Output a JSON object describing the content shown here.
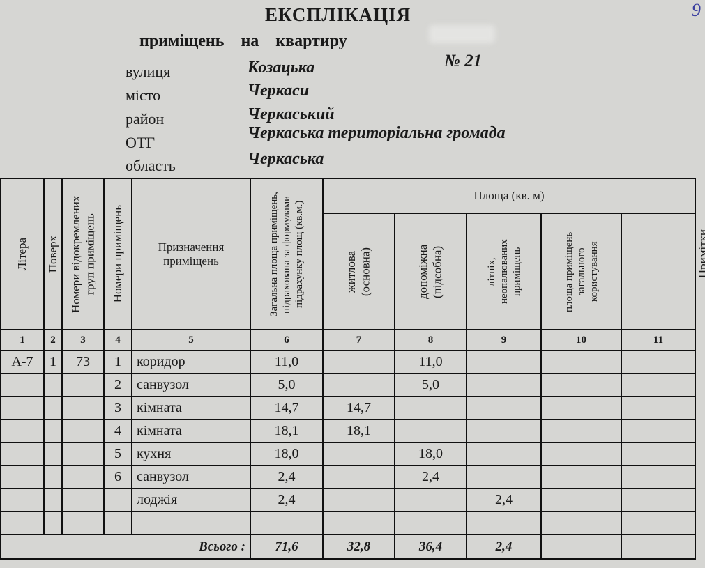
{
  "header": {
    "title": "ЕКСПЛІКАЦІЯ",
    "subtitle": "приміщень на квартиру",
    "apartment_number": "№ 21",
    "handwritten_mark": "9",
    "fields": [
      {
        "label": "вулиця",
        "value": "Козацька"
      },
      {
        "label": "місто",
        "value": "Черкаси"
      },
      {
        "label": "район",
        "value": "Черкаський"
      },
      {
        "label": "ОТГ",
        "value": "Черкаська територіальна громада"
      },
      {
        "label": "область",
        "value": "Черкаська"
      }
    ]
  },
  "table": {
    "columns": {
      "litera": "Літера",
      "poverkh": "Поверх",
      "groups": "Номери відокремлених груп приміщень",
      "rooms": "Номери приміщень",
      "purpose": "Призначення приміщень",
      "total_area": "Загальна площа приміщень, підрахована за формулами підрахунку площ (кв.м.)",
      "area_group": "Площа (кв. м)",
      "living": "житлова (основна)",
      "auxiliary": "допоміжна (підсобна)",
      "summer": "літніх, неопалюваних приміщень",
      "common": "площа приміщень загального користування",
      "notes": "Примітки"
    },
    "column_numbers": [
      "1",
      "2",
      "3",
      "4",
      "5",
      "6",
      "7",
      "8",
      "9",
      "10",
      "11"
    ],
    "rows": [
      {
        "litera": "А-7",
        "floor": "1",
        "group": "73",
        "room": "1",
        "name": "коридор",
        "total": "11,0",
        "living": "",
        "aux": "11,0",
        "summer": "",
        "common": "",
        "notes": ""
      },
      {
        "litera": "",
        "floor": "",
        "group": "",
        "room": "2",
        "name": "санвузол",
        "total": "5,0",
        "living": "",
        "aux": "5,0",
        "summer": "",
        "common": "",
        "notes": ""
      },
      {
        "litera": "",
        "floor": "",
        "group": "",
        "room": "3",
        "name": "кімната",
        "total": "14,7",
        "living": "14,7",
        "aux": "",
        "summer": "",
        "common": "",
        "notes": ""
      },
      {
        "litera": "",
        "floor": "",
        "group": "",
        "room": "4",
        "name": "кімната",
        "total": "18,1",
        "living": "18,1",
        "aux": "",
        "summer": "",
        "common": "",
        "notes": ""
      },
      {
        "litera": "",
        "floor": "",
        "group": "",
        "room": "5",
        "name": "кухня",
        "total": "18,0",
        "living": "",
        "aux": "18,0",
        "summer": "",
        "common": "",
        "notes": ""
      },
      {
        "litera": "",
        "floor": "",
        "group": "",
        "room": "6",
        "name": "санвузол",
        "total": "2,4",
        "living": "",
        "aux": "2,4",
        "summer": "",
        "common": "",
        "notes": ""
      },
      {
        "litera": "",
        "floor": "",
        "group": "",
        "room": "",
        "name": "лоджія",
        "total": "2,4",
        "living": "",
        "aux": "",
        "summer": "2,4",
        "common": "",
        "notes": ""
      },
      {
        "litera": "",
        "floor": "",
        "group": "",
        "room": "",
        "name": "",
        "total": "",
        "living": "",
        "aux": "",
        "summer": "",
        "common": "",
        "notes": ""
      }
    ],
    "totals": {
      "label": "Всього :",
      "total": "71,6",
      "living": "32,8",
      "aux": "36,4",
      "summer": "2,4"
    }
  }
}
